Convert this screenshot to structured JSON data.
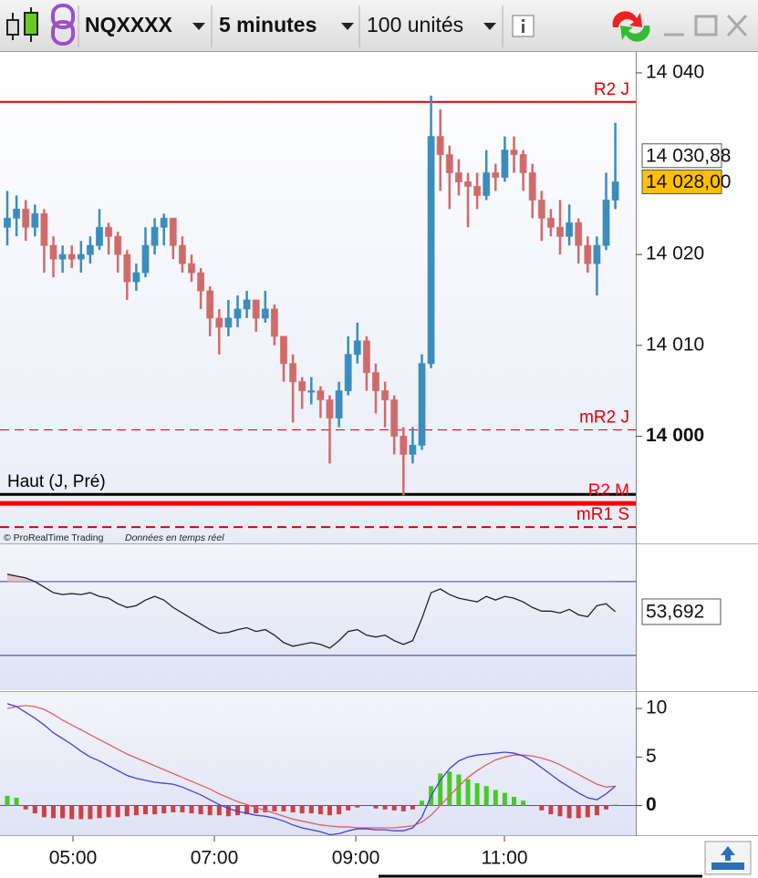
{
  "toolbar": {
    "instrument": "NQXXXX",
    "timeframe": "5 minutes",
    "units": "100 unités"
  },
  "watermark": {
    "copyright": "© ProRealTime Trading",
    "status": "Données en temps réel"
  },
  "time_axis": [
    "05:00",
    "07:00",
    "09:00",
    "11:00"
  ],
  "chart_data": [
    {
      "type": "candlestick",
      "up_color": "#3a8dbd",
      "down_color": "#cf6b6b",
      "ylim": [
        13988.2,
        14042.3
      ],
      "yticks": [
        {
          "value": 14040,
          "label": "14 040"
        },
        {
          "value": 14020,
          "label": "14 020"
        },
        {
          "value": 14010,
          "label": "14 010"
        },
        {
          "value": 14000,
          "label": "14 000",
          "bold": true
        }
      ],
      "price_markers": [
        {
          "value": 14030.88,
          "label": "14 030,88",
          "color": "#ffffff"
        },
        {
          "value": 14028,
          "label": "14 028,00",
          "color": "#ffc000"
        }
      ],
      "levels": [
        {
          "name": "R2 J",
          "value": 14036.8,
          "color": "#e00000",
          "style": "solid",
          "width": 2
        },
        {
          "name": "mR2 J",
          "value": 14000.7,
          "color": "#e00000",
          "style": "dashed",
          "width": 1
        },
        {
          "name": "Haut (J, Pré)",
          "value": 13993.6,
          "color": "#000000",
          "style": "solid",
          "width": 3,
          "label_side": "left"
        },
        {
          "name": "R2 M",
          "value": 13992.6,
          "color": "#ff0000",
          "style": "solid",
          "width": 5
        },
        {
          "name": "mR1 S",
          "value": 13990,
          "color": "#e00000",
          "style": "dashed",
          "width": 2
        }
      ],
      "candles": [
        [
          14023,
          14027,
          14021,
          14024
        ],
        [
          14024,
          14026.5,
          14022,
          14025
        ],
        [
          14025,
          14026,
          14021.5,
          14023
        ],
        [
          14023,
          14025.5,
          14022,
          14024.5
        ],
        [
          14024.5,
          14025,
          14018,
          14021
        ],
        [
          14021,
          14022,
          14017.5,
          14019.5
        ],
        [
          14019.5,
          14021,
          14018,
          14020
        ],
        [
          14020,
          14021,
          14018.5,
          14019.5
        ],
        [
          14019.5,
          14021.5,
          14018,
          14020
        ],
        [
          14020,
          14022,
          14019,
          14021
        ],
        [
          14021,
          14025,
          14020.5,
          14023
        ],
        [
          14023,
          14023.5,
          14020,
          14022
        ],
        [
          14022,
          14022.5,
          14018,
          14020
        ],
        [
          14020,
          14020.5,
          14015,
          14017
        ],
        [
          14017,
          14019,
          14016,
          14018
        ],
        [
          14018,
          14023,
          14017.5,
          14021
        ],
        [
          14021,
          14024,
          14020,
          14023
        ],
        [
          14023,
          14024.5,
          14021,
          14024
        ],
        [
          14024,
          14024,
          14019.5,
          14021
        ],
        [
          14021,
          14022,
          14018,
          14019
        ],
        [
          14019,
          14020,
          14017,
          14018
        ],
        [
          14018,
          14018.5,
          14014,
          14016
        ],
        [
          14016,
          14016.5,
          14011,
          14013
        ],
        [
          14013,
          14014,
          14009,
          14012
        ],
        [
          14012,
          14015,
          14011,
          14013
        ],
        [
          14013,
          14015.5,
          14012,
          14014
        ],
        [
          14014,
          14016,
          14013,
          14015
        ],
        [
          14015,
          14015,
          14011.5,
          14013
        ],
        [
          14013,
          14016,
          14012.5,
          14014
        ],
        [
          14014,
          14014.5,
          14010,
          14011
        ],
        [
          14011,
          14011,
          14006,
          14008
        ],
        [
          14008,
          14009,
          14001.5,
          14006
        ],
        [
          14006,
          14006.5,
          14003,
          14005
        ],
        [
          14005,
          14006.5,
          14003.5,
          14005
        ],
        [
          14005,
          14005.5,
          14002,
          14004
        ],
        [
          14004,
          14004.5,
          13997,
          14002
        ],
        [
          14002,
          14006,
          14001,
          14005
        ],
        [
          14005,
          14011,
          14004.5,
          14009
        ],
        [
          14009,
          14012.5,
          14008,
          14010.5
        ],
        [
          14010.5,
          14011,
          14005,
          14007
        ],
        [
          14007,
          14008,
          14002.5,
          14005
        ],
        [
          14005,
          14006,
          14001,
          14004
        ],
        [
          14004,
          14004.5,
          13998,
          14000
        ],
        [
          14000,
          14001,
          13993.5,
          13998
        ],
        [
          13998,
          14001,
          13997,
          13999
        ],
        [
          13999,
          14009,
          13998.5,
          14008
        ],
        [
          14008,
          14037.5,
          14007.5,
          14033
        ],
        [
          14033,
          14036,
          14027,
          14031
        ],
        [
          14031,
          14032,
          14025,
          14029
        ],
        [
          14029,
          14030.5,
          14026.5,
          14028
        ],
        [
          14028,
          14029,
          14023,
          14027.5
        ],
        [
          14027.5,
          14029,
          14025,
          14026.5
        ],
        [
          14026.5,
          14031.5,
          14026,
          14029
        ],
        [
          14029,
          14030,
          14027,
          14028.5
        ],
        [
          14028.5,
          14033,
          14028,
          14031.5
        ],
        [
          14031.5,
          14033,
          14029,
          14031
        ],
        [
          14031,
          14031.5,
          14027,
          14029
        ],
        [
          14029,
          14030,
          14024,
          14026
        ],
        [
          14026,
          14027,
          14021.5,
          14024
        ],
        [
          14024,
          14025,
          14022,
          14023
        ],
        [
          14023,
          14026,
          14020,
          14022
        ],
        [
          14022,
          14025.5,
          14021,
          14023.5
        ],
        [
          14023.5,
          14024,
          14019,
          14021
        ],
        [
          14021,
          14022,
          14018,
          14019
        ],
        [
          14019,
          14022,
          14015.5,
          14021
        ],
        [
          14021,
          14029,
          14020.5,
          14026
        ],
        [
          14026,
          14034.5,
          14025,
          14028
        ]
      ]
    },
    {
      "type": "line",
      "color": "#222222",
      "ylim": [
        11.2,
        90.2
      ],
      "levels": [
        70,
        30
      ],
      "level_color": "#3333aa",
      "overbought_fill": "#e3c6ca",
      "last_label": "53,692",
      "values": [
        74,
        73,
        72,
        70,
        67,
        64,
        63,
        63.5,
        63,
        64,
        62,
        61,
        58,
        56,
        57,
        60,
        62,
        60,
        56,
        53,
        50,
        47,
        44,
        42,
        42.5,
        44,
        45,
        43,
        44,
        41,
        37,
        35,
        36,
        37,
        36,
        34,
        38,
        43,
        44,
        41,
        40,
        41,
        38,
        36,
        38,
        50,
        64,
        66,
        63,
        61,
        60,
        59,
        62,
        60,
        62,
        61,
        59,
        56,
        54,
        54,
        53,
        55,
        52,
        51,
        57,
        58,
        53.692
      ]
    },
    {
      "type": "macd",
      "ylim": [
        -3.05,
        11.7
      ],
      "yticks": [
        0,
        5,
        10
      ],
      "macd_color": "#4040e0",
      "signal_color": "#e06060",
      "up_color": "#44cc22",
      "down_color": "#d04040",
      "macd": [
        10.5,
        10.2,
        9.6,
        9,
        8.3,
        7.5,
        6.9,
        6.3,
        5.6,
        5,
        4.6,
        4.1,
        3.6,
        3.1,
        2.8,
        2.6,
        2.4,
        2.3,
        2.2,
        1.9,
        1.5,
        1.1,
        0.6,
        0.1,
        -0.3,
        -0.6,
        -0.8,
        -1,
        -1.1,
        -1.3,
        -1.6,
        -2,
        -2.3,
        -2.5,
        -2.7,
        -3,
        -2.9,
        -2.6,
        -2.4,
        -2.4,
        -2.5,
        -2.5,
        -2.6,
        -2.6,
        -2.3,
        -1.2,
        1,
        2.6,
        3.8,
        4.6,
        5,
        5.2,
        5.3,
        5.4,
        5.5,
        5.4,
        5.1,
        4.6,
        3.9,
        3.2,
        2.5,
        1.9,
        1.3,
        0.8,
        0.6,
        1.2,
        2
      ],
      "signal": [
        10,
        10.2,
        10.3,
        10.2,
        9.9,
        9.4,
        8.8,
        8.3,
        7.8,
        7.3,
        6.8,
        6.3,
        5.8,
        5.3,
        4.9,
        4.5,
        4.1,
        3.7,
        3.3,
        2.9,
        2.5,
        2.1,
        1.7,
        1.2,
        0.8,
        0.4,
        0.1,
        -0.2,
        -0.5,
        -0.8,
        -1.1,
        -1.4,
        -1.6,
        -1.8,
        -2,
        -2.1,
        -2.2,
        -2.2,
        -2.3,
        -2.3,
        -2.3,
        -2.3,
        -2.3,
        -2.2,
        -2.1,
        -1.7,
        -1,
        0,
        1,
        2,
        2.9,
        3.6,
        4.2,
        4.7,
        5,
        5.2,
        5.2,
        5.1,
        4.9,
        4.6,
        4.2,
        3.7,
        3.2,
        2.7,
        2.2,
        1.9,
        2
      ],
      "histogram": [
        1,
        0.8,
        -0.4,
        -0.8,
        -1.2,
        -1.3,
        -1.3,
        -1.4,
        -1.4,
        -1.4,
        -1.3,
        -1.2,
        -1.2,
        -1.1,
        -1,
        -0.9,
        -0.9,
        -0.8,
        -0.7,
        -0.7,
        -0.8,
        -0.9,
        -1,
        -1,
        -1.1,
        -1,
        -0.9,
        -0.8,
        -0.7,
        -0.6,
        -0.6,
        -0.7,
        -0.8,
        -0.8,
        -0.9,
        -1,
        -0.9,
        -0.5,
        -0.2,
        0,
        -0.3,
        -0.4,
        -0.5,
        -0.6,
        -0.4,
        0.5,
        2,
        3.3,
        3.5,
        3.2,
        2.7,
        2.3,
        2,
        1.6,
        1.3,
        0.9,
        0.5,
        0,
        -0.5,
        -0.9,
        -1.1,
        -1.3,
        -1.3,
        -1.2,
        -1,
        -0.4,
        0.1
      ]
    }
  ]
}
